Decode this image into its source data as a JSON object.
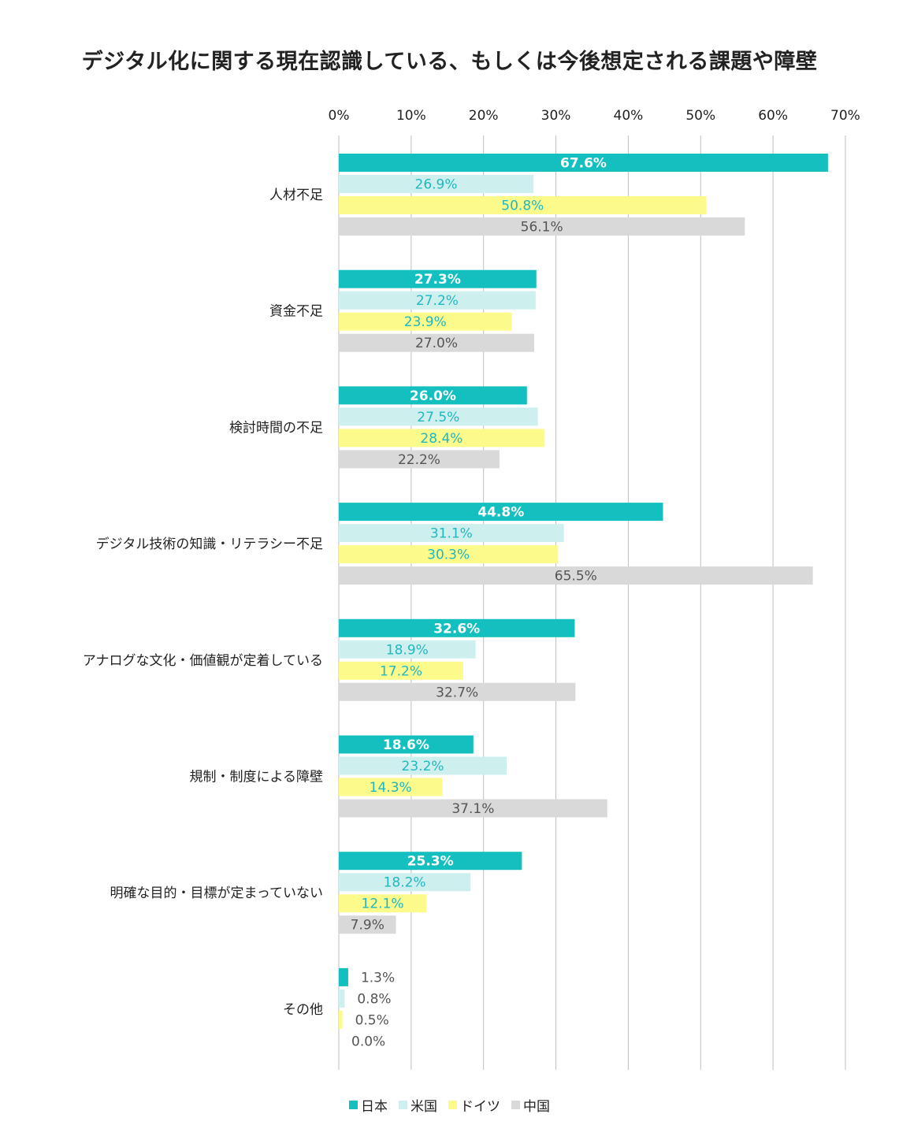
{
  "chart_data": {
    "type": "bar",
    "orientation": "horizontal",
    "title": "デジタル化に関する現在認識している、もしくは今後想定される課題や障壁",
    "xlim": [
      0,
      70
    ],
    "x_ticks": [
      "0%",
      "10%",
      "20%",
      "30%",
      "40%",
      "50%",
      "60%",
      "70%"
    ],
    "x_axis_position": "top",
    "grid": true,
    "legend_position": "bottom",
    "categories": [
      "人材不足",
      "資金不足",
      "検討時間の不足",
      "デジタル技術の知識・リテラシー不足",
      "アナログな文化・価値観が定着している",
      "規制・制度による障壁",
      "明確な目的・目標が定まっていない",
      "その他"
    ],
    "series": [
      {
        "name": "日本",
        "color": "#14bfbf",
        "label_color": "#ffffff",
        "values": [
          67.6,
          27.3,
          26.0,
          44.8,
          32.6,
          18.6,
          25.3,
          1.3
        ],
        "labels": [
          "67.6%",
          "27.3%",
          "26.0%",
          "44.8%",
          "32.6%",
          "18.6%",
          "25.3%",
          "1.3%"
        ]
      },
      {
        "name": "米国",
        "color": "#cdf0ef",
        "label_color": "#1fb8c0",
        "values": [
          26.9,
          27.2,
          27.5,
          31.1,
          18.9,
          23.2,
          18.2,
          0.8
        ],
        "labels": [
          "26.9%",
          "27.2%",
          "27.5%",
          "31.1%",
          "18.9%",
          "23.2%",
          "18.2%",
          "0.8%"
        ]
      },
      {
        "name": "ドイツ",
        "color": "#fdfa8c",
        "label_color": "#1fb8c0",
        "values": [
          50.8,
          23.9,
          28.4,
          30.3,
          17.2,
          14.3,
          12.1,
          0.5
        ],
        "labels": [
          "50.8%",
          "23.9%",
          "28.4%",
          "30.3%",
          "17.2%",
          "14.3%",
          "12.1%",
          "0.5%"
        ]
      },
      {
        "name": "中国",
        "color": "#d9d9d9",
        "label_color": "#555555",
        "values": [
          56.1,
          27.0,
          22.2,
          65.5,
          32.7,
          37.1,
          7.9,
          0.0
        ],
        "labels": [
          "56.1%",
          "27.0%",
          "22.2%",
          "65.5%",
          "32.7%",
          "37.1%",
          "7.9%",
          "0.0%"
        ]
      }
    ],
    "outside_label_color": "#555555"
  }
}
